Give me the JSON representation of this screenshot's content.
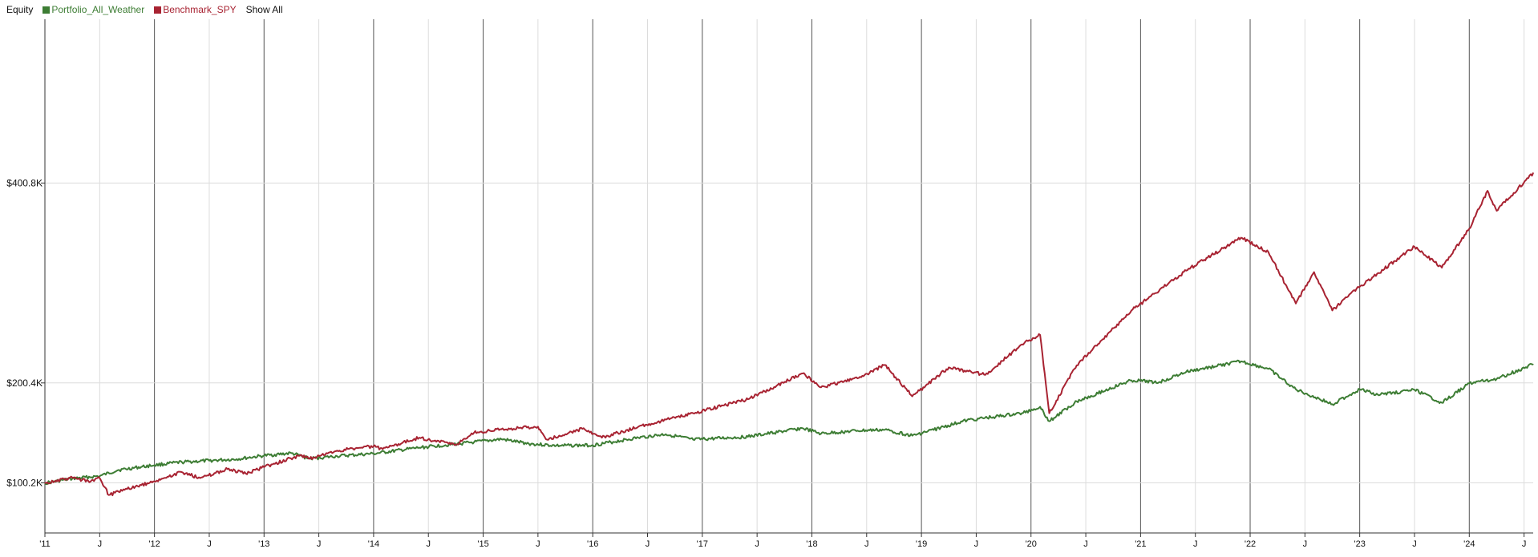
{
  "legend": {
    "title": "Equity",
    "show_all": "Show All"
  },
  "chart_data": {
    "type": "line",
    "grid": true,
    "legend_placement": "top-left",
    "x_range": [
      "2011-01",
      "2024-08"
    ],
    "y_range": [
      50000,
      565000
    ],
    "y_ticks": [
      {
        "value": 100200,
        "label": "$100.2K"
      },
      {
        "value": 200400,
        "label": "$200.4K"
      },
      {
        "value": 400800,
        "label": "$400.8K"
      }
    ],
    "x_ticks": [
      {
        "date": "2011-01",
        "label": "'11",
        "major": true
      },
      {
        "date": "2011-07",
        "label": "J",
        "major": false
      },
      {
        "date": "2012-01",
        "label": "'12",
        "major": true
      },
      {
        "date": "2012-07",
        "label": "J",
        "major": false
      },
      {
        "date": "2013-01",
        "label": "'13",
        "major": true
      },
      {
        "date": "2013-07",
        "label": "J",
        "major": false
      },
      {
        "date": "2014-01",
        "label": "'14",
        "major": true
      },
      {
        "date": "2014-07",
        "label": "J",
        "major": false
      },
      {
        "date": "2015-01",
        "label": "'15",
        "major": true
      },
      {
        "date": "2015-07",
        "label": "J",
        "major": false
      },
      {
        "date": "2016-01",
        "label": "'16",
        "major": true
      },
      {
        "date": "2016-07",
        "label": "J",
        "major": false
      },
      {
        "date": "2017-01",
        "label": "'17",
        "major": true
      },
      {
        "date": "2017-07",
        "label": "J",
        "major": false
      },
      {
        "date": "2018-01",
        "label": "'18",
        "major": true
      },
      {
        "date": "2018-07",
        "label": "J",
        "major": false
      },
      {
        "date": "2019-01",
        "label": "'19",
        "major": true
      },
      {
        "date": "2019-07",
        "label": "J",
        "major": false
      },
      {
        "date": "2020-01",
        "label": "'20",
        "major": true
      },
      {
        "date": "2020-07",
        "label": "J",
        "major": false
      },
      {
        "date": "2021-01",
        "label": "'21",
        "major": true
      },
      {
        "date": "2021-07",
        "label": "J",
        "major": false
      },
      {
        "date": "2022-01",
        "label": "'22",
        "major": true
      },
      {
        "date": "2022-07",
        "label": "J",
        "major": false
      },
      {
        "date": "2023-01",
        "label": "'23",
        "major": true
      },
      {
        "date": "2023-07",
        "label": "J",
        "major": false
      },
      {
        "date": "2024-01",
        "label": "'24",
        "major": true
      },
      {
        "date": "2024-07",
        "label": "J",
        "major": false
      }
    ],
    "series": [
      {
        "name": "Portfolio_All_Weather",
        "color": "#3d7d34",
        "points": [
          [
            "2011-01",
            100000
          ],
          [
            "2011-04",
            104500
          ],
          [
            "2011-07",
            107000
          ],
          [
            "2011-09",
            113000
          ],
          [
            "2012-01",
            118000
          ],
          [
            "2012-04",
            121000
          ],
          [
            "2012-07",
            122500
          ],
          [
            "2012-10",
            124000
          ],
          [
            "2013-01",
            127500
          ],
          [
            "2013-04",
            130000
          ],
          [
            "2013-06",
            124500
          ],
          [
            "2013-09",
            127000
          ],
          [
            "2014-01",
            129500
          ],
          [
            "2014-06",
            135500
          ],
          [
            "2014-12",
            141000
          ],
          [
            "2015-03",
            144000
          ],
          [
            "2015-06",
            139500
          ],
          [
            "2015-09",
            137500
          ],
          [
            "2016-01",
            138000
          ],
          [
            "2016-06",
            145500
          ],
          [
            "2016-09",
            149000
          ],
          [
            "2016-12",
            143500
          ],
          [
            "2017-06",
            146500
          ],
          [
            "2017-12",
            155000
          ],
          [
            "2018-02",
            149500
          ],
          [
            "2018-06",
            152500
          ],
          [
            "2018-09",
            153500
          ],
          [
            "2018-12",
            147500
          ],
          [
            "2019-06",
            163000
          ],
          [
            "2019-12",
            170000
          ],
          [
            "2020-02",
            176500
          ],
          [
            "2020-03",
            162000
          ],
          [
            "2020-06",
            182000
          ],
          [
            "2020-12",
            203000
          ],
          [
            "2021-03",
            201000
          ],
          [
            "2021-06",
            211500
          ],
          [
            "2021-12",
            222000
          ],
          [
            "2022-03",
            214500
          ],
          [
            "2022-06",
            194000
          ],
          [
            "2022-10",
            179000
          ],
          [
            "2023-01",
            194000
          ],
          [
            "2023-03",
            188500
          ],
          [
            "2023-07",
            193500
          ],
          [
            "2023-10",
            180500
          ],
          [
            "2024-01",
            200000
          ],
          [
            "2024-04",
            204500
          ],
          [
            "2024-08",
            219000
          ]
        ]
      },
      {
        "name": "Benchmark_SPY",
        "color": "#a82332",
        "points": [
          [
            "2011-01",
            100000
          ],
          [
            "2011-04",
            105500
          ],
          [
            "2011-06",
            101500
          ],
          [
            "2011-07",
            105000
          ],
          [
            "2011-08",
            88000
          ],
          [
            "2011-10",
            94000
          ],
          [
            "2012-01",
            101500
          ],
          [
            "2012-04",
            111000
          ],
          [
            "2012-06",
            105000
          ],
          [
            "2012-09",
            114000
          ],
          [
            "2012-11",
            109500
          ],
          [
            "2013-01",
            116000
          ],
          [
            "2013-05",
            128000
          ],
          [
            "2013-06",
            124500
          ],
          [
            "2013-09",
            132500
          ],
          [
            "2014-01",
            137000
          ],
          [
            "2014-02",
            134000
          ],
          [
            "2014-06",
            145500
          ],
          [
            "2014-10",
            138500
          ],
          [
            "2014-12",
            150500
          ],
          [
            "2015-03",
            154000
          ],
          [
            "2015-07",
            156500
          ],
          [
            "2015-08",
            143500
          ],
          [
            "2015-12",
            155000
          ],
          [
            "2016-02",
            145500
          ],
          [
            "2016-06",
            156500
          ],
          [
            "2016-12",
            170000
          ],
          [
            "2017-06",
            184000
          ],
          [
            "2017-12",
            210000
          ],
          [
            "2018-02",
            196000
          ],
          [
            "2018-06",
            205000
          ],
          [
            "2018-09",
            218500
          ],
          [
            "2018-12",
            187000
          ],
          [
            "2019-04",
            216000
          ],
          [
            "2019-08",
            208500
          ],
          [
            "2019-12",
            239000
          ],
          [
            "2020-02",
            248500
          ],
          [
            "2020-03",
            170000
          ],
          [
            "2020-06",
            218000
          ],
          [
            "2020-12",
            273000
          ],
          [
            "2021-06",
            313000
          ],
          [
            "2021-12",
            346000
          ],
          [
            "2022-03",
            331500
          ],
          [
            "2022-06",
            280000
          ],
          [
            "2022-08",
            311500
          ],
          [
            "2022-10",
            273000
          ],
          [
            "2022-12",
            290000
          ],
          [
            "2023-07",
            337000
          ],
          [
            "2023-10",
            316000
          ],
          [
            "2024-01",
            355000
          ],
          [
            "2024-03",
            393000
          ],
          [
            "2024-04",
            373000
          ],
          [
            "2024-08",
            411000
          ]
        ]
      }
    ]
  }
}
